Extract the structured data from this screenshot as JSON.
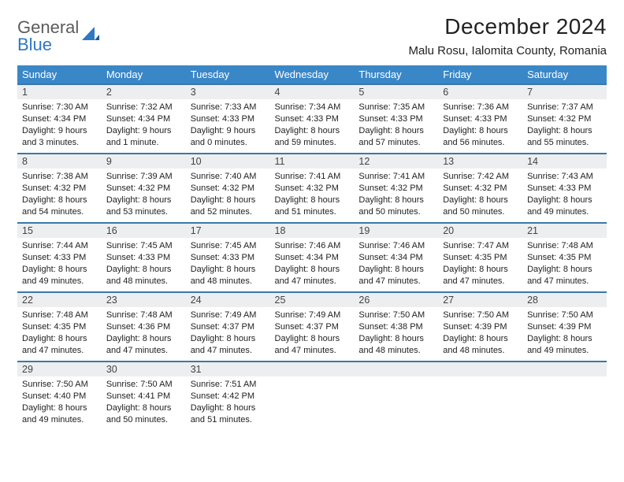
{
  "brand": {
    "name_part1": "General",
    "name_part2": "Blue",
    "text_color": "#5c5c5c",
    "accent_color": "#2f78c4"
  },
  "header": {
    "month_title": "December 2024",
    "location": "Malu Rosu, Ialomita County, Romania"
  },
  "calendar": {
    "header_bg": "#3a87c8",
    "header_fg": "#ffffff",
    "row_border_color": "#3a78a8",
    "daynum_bg": "#eceeef",
    "columns": [
      "Sunday",
      "Monday",
      "Tuesday",
      "Wednesday",
      "Thursday",
      "Friday",
      "Saturday"
    ],
    "weeks": [
      [
        {
          "n": "1",
          "sr": "7:30 AM",
          "ss": "4:34 PM",
          "dl": "9 hours and 3 minutes."
        },
        {
          "n": "2",
          "sr": "7:32 AM",
          "ss": "4:34 PM",
          "dl": "9 hours and 1 minute."
        },
        {
          "n": "3",
          "sr": "7:33 AM",
          "ss": "4:33 PM",
          "dl": "9 hours and 0 minutes."
        },
        {
          "n": "4",
          "sr": "7:34 AM",
          "ss": "4:33 PM",
          "dl": "8 hours and 59 minutes."
        },
        {
          "n": "5",
          "sr": "7:35 AM",
          "ss": "4:33 PM",
          "dl": "8 hours and 57 minutes."
        },
        {
          "n": "6",
          "sr": "7:36 AM",
          "ss": "4:33 PM",
          "dl": "8 hours and 56 minutes."
        },
        {
          "n": "7",
          "sr": "7:37 AM",
          "ss": "4:32 PM",
          "dl": "8 hours and 55 minutes."
        }
      ],
      [
        {
          "n": "8",
          "sr": "7:38 AM",
          "ss": "4:32 PM",
          "dl": "8 hours and 54 minutes."
        },
        {
          "n": "9",
          "sr": "7:39 AM",
          "ss": "4:32 PM",
          "dl": "8 hours and 53 minutes."
        },
        {
          "n": "10",
          "sr": "7:40 AM",
          "ss": "4:32 PM",
          "dl": "8 hours and 52 minutes."
        },
        {
          "n": "11",
          "sr": "7:41 AM",
          "ss": "4:32 PM",
          "dl": "8 hours and 51 minutes."
        },
        {
          "n": "12",
          "sr": "7:41 AM",
          "ss": "4:32 PM",
          "dl": "8 hours and 50 minutes."
        },
        {
          "n": "13",
          "sr": "7:42 AM",
          "ss": "4:32 PM",
          "dl": "8 hours and 50 minutes."
        },
        {
          "n": "14",
          "sr": "7:43 AM",
          "ss": "4:33 PM",
          "dl": "8 hours and 49 minutes."
        }
      ],
      [
        {
          "n": "15",
          "sr": "7:44 AM",
          "ss": "4:33 PM",
          "dl": "8 hours and 49 minutes."
        },
        {
          "n": "16",
          "sr": "7:45 AM",
          "ss": "4:33 PM",
          "dl": "8 hours and 48 minutes."
        },
        {
          "n": "17",
          "sr": "7:45 AM",
          "ss": "4:33 PM",
          "dl": "8 hours and 48 minutes."
        },
        {
          "n": "18",
          "sr": "7:46 AM",
          "ss": "4:34 PM",
          "dl": "8 hours and 47 minutes."
        },
        {
          "n": "19",
          "sr": "7:46 AM",
          "ss": "4:34 PM",
          "dl": "8 hours and 47 minutes."
        },
        {
          "n": "20",
          "sr": "7:47 AM",
          "ss": "4:35 PM",
          "dl": "8 hours and 47 minutes."
        },
        {
          "n": "21",
          "sr": "7:48 AM",
          "ss": "4:35 PM",
          "dl": "8 hours and 47 minutes."
        }
      ],
      [
        {
          "n": "22",
          "sr": "7:48 AM",
          "ss": "4:35 PM",
          "dl": "8 hours and 47 minutes."
        },
        {
          "n": "23",
          "sr": "7:48 AM",
          "ss": "4:36 PM",
          "dl": "8 hours and 47 minutes."
        },
        {
          "n": "24",
          "sr": "7:49 AM",
          "ss": "4:37 PM",
          "dl": "8 hours and 47 minutes."
        },
        {
          "n": "25",
          "sr": "7:49 AM",
          "ss": "4:37 PM",
          "dl": "8 hours and 47 minutes."
        },
        {
          "n": "26",
          "sr": "7:50 AM",
          "ss": "4:38 PM",
          "dl": "8 hours and 48 minutes."
        },
        {
          "n": "27",
          "sr": "7:50 AM",
          "ss": "4:39 PM",
          "dl": "8 hours and 48 minutes."
        },
        {
          "n": "28",
          "sr": "7:50 AM",
          "ss": "4:39 PM",
          "dl": "8 hours and 49 minutes."
        }
      ],
      [
        {
          "n": "29",
          "sr": "7:50 AM",
          "ss": "4:40 PM",
          "dl": "8 hours and 49 minutes."
        },
        {
          "n": "30",
          "sr": "7:50 AM",
          "ss": "4:41 PM",
          "dl": "8 hours and 50 minutes."
        },
        {
          "n": "31",
          "sr": "7:51 AM",
          "ss": "4:42 PM",
          "dl": "8 hours and 51 minutes."
        },
        null,
        null,
        null,
        null
      ]
    ],
    "labels": {
      "sunrise": "Sunrise:",
      "sunset": "Sunset:",
      "daylight": "Daylight:"
    }
  }
}
